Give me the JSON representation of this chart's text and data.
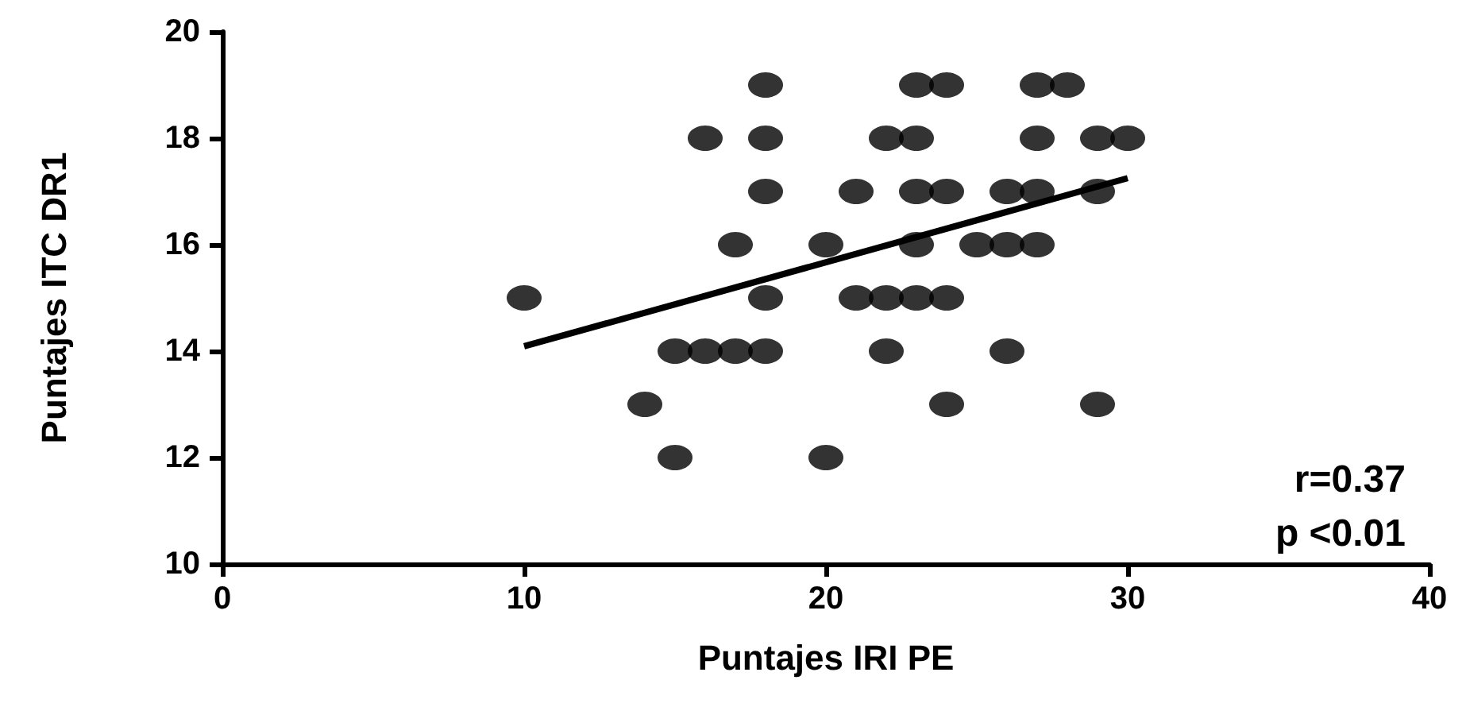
{
  "chart_data": {
    "type": "scatter",
    "xlabel": "Puntajes IRI PE",
    "ylabel": "Puntajes ITC DR1",
    "xlim": [
      0,
      40
    ],
    "xticks": [
      0,
      10,
      20,
      30,
      40
    ],
    "ylim": [
      10,
      20
    ],
    "yticks": [
      10,
      12,
      14,
      16,
      18,
      20
    ],
    "grid": false,
    "marker": "circle",
    "annotations": [
      "r=0.37",
      "p <0.01"
    ],
    "series": [
      {
        "color": "#000000",
        "x": [
          18,
          23,
          24,
          27,
          28,
          16,
          18,
          22,
          23,
          27,
          29,
          30,
          18,
          21,
          23,
          24,
          26,
          27,
          29,
          17,
          20,
          23,
          25,
          26,
          27,
          10,
          18,
          21,
          22,
          23,
          24,
          15,
          16,
          17,
          18,
          22,
          26,
          14,
          24,
          29,
          15,
          20
        ],
        "values": [
          19,
          19,
          19,
          19,
          19,
          18,
          18,
          18,
          18,
          18,
          18,
          18,
          17,
          17,
          17,
          17,
          17,
          17,
          17,
          16,
          16,
          16,
          16,
          16,
          16,
          15,
          15,
          15,
          15,
          15,
          15,
          14,
          14,
          14,
          14,
          14,
          14,
          13,
          13,
          13,
          12,
          12
        ]
      },
      {
        "type": "line",
        "color": "#000000",
        "x": [
          10,
          30
        ],
        "values": [
          14.09,
          17.25
        ],
        "marker": "none",
        "line_style": "solid"
      }
    ]
  }
}
